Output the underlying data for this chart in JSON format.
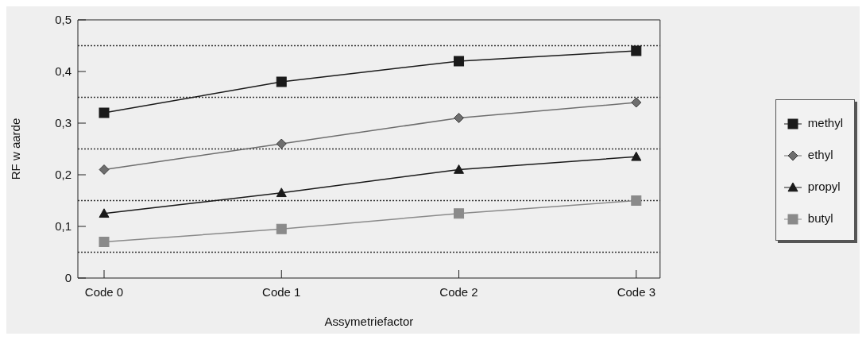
{
  "chart_data": {
    "type": "line",
    "xlabel": "Assymetriefactor",
    "ylabel": "RF w aarde",
    "categories": [
      "Code 0",
      "Code 1",
      "Code 2",
      "Code 3"
    ],
    "series": [
      {
        "name": "methyl",
        "color": "#1a1a1a",
        "marker": "square",
        "values": [
          0.32,
          0.38,
          0.42,
          0.44
        ]
      },
      {
        "name": "ethyl",
        "color": "#6e6e6e",
        "marker": "diamond",
        "values": [
          0.21,
          0.26,
          0.31,
          0.34
        ]
      },
      {
        "name": "propyl",
        "color": "#1a1a1a",
        "marker": "triangle",
        "values": [
          0.125,
          0.165,
          0.21,
          0.235
        ]
      },
      {
        "name": "butyl",
        "color": "#8a8a8a",
        "marker": "square",
        "values": [
          0.07,
          0.095,
          0.125,
          0.15
        ]
      }
    ],
    "ylim": [
      0,
      0.5
    ],
    "yticks": [
      0,
      {
        "value": 0.1,
        "label": "0,1"
      },
      {
        "value": 0.2,
        "label": "0,2"
      },
      {
        "value": 0.3,
        "label": "0,3"
      },
      {
        "value": 0.4,
        "label": "0,4"
      },
      {
        "value": 0.5,
        "label": "0,5"
      }
    ],
    "ref_lines": [
      {
        "axis": "y",
        "value": 0.05,
        "color": "#333333",
        "line_style": "dotted"
      },
      {
        "axis": "y",
        "value": 0.15,
        "color": "#333333",
        "line_style": "dotted"
      },
      {
        "axis": "y",
        "value": 0.25,
        "color": "#333333",
        "line_style": "dotted"
      },
      {
        "axis": "y",
        "value": 0.35,
        "color": "#333333",
        "line_style": "dotted"
      },
      {
        "axis": "y",
        "value": 0.45,
        "color": "#333333",
        "line_style": "dotted"
      }
    ],
    "grid": false,
    "legend": "right",
    "line_style": "solid"
  }
}
